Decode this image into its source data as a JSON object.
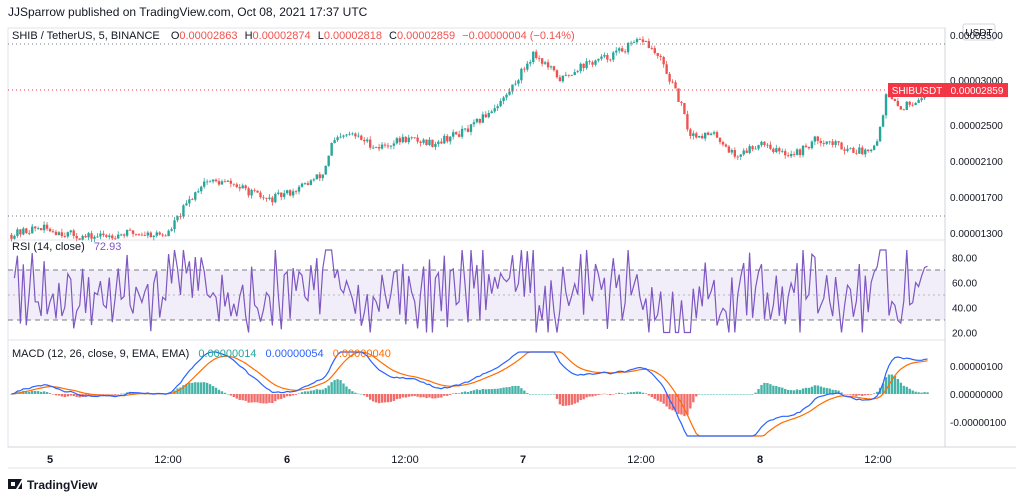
{
  "header": {
    "published": "JJSparrow published on TradingView.com, Oct 08, 2021 17:37 UTC",
    "currency_button": "USDT"
  },
  "symbol": {
    "name": "SHIB / TetherUS, 5, BINANCE",
    "o_label": "O",
    "o_value": "0.00002863",
    "h_label": "H",
    "h_value": "0.00002874",
    "l_label": "L",
    "l_value": "0.00002818",
    "c_label": "C",
    "c_value": "0.00002859",
    "change": "−0.00000004 (−0.14%)",
    "tag_name": "SHIBUSDT",
    "tag_price": "0.00002859"
  },
  "rsi": {
    "title": "RSI (14, close)",
    "value": "72.93"
  },
  "macd": {
    "title": "MACD (12, 26, close, 9, EMA, EMA)",
    "v1": "0.00000014",
    "v2": "0.00000054",
    "v3": "0.00000040"
  },
  "footer": {
    "brand": "TradingView"
  },
  "colors": {
    "up": "#26a69a",
    "down": "#ef5350",
    "rsi": "#7e57c2",
    "macd": "#2962ff",
    "signal": "#ff6d00",
    "tag": "#f23645"
  },
  "chart_data": {
    "type": "candlestick",
    "price_axis_ticks": [
      "0.00003500",
      "0.00003000",
      "0.00002500",
      "0.00002100",
      "0.00001700",
      "0.00001300"
    ],
    "price_axis_values": [
      3.5e-05,
      3e-05,
      2.5e-05,
      2.1e-05,
      1.7e-05,
      1.3e-05
    ],
    "time_labels": [
      "5",
      "12:00",
      "6",
      "12:00",
      "7",
      "12:00",
      "8",
      "12:00"
    ],
    "price_anchors": [
      [
        0,
        1.28e-05
      ],
      [
        0.03,
        1.36e-05
      ],
      [
        0.08,
        1.25e-05
      ],
      [
        0.13,
        1.3e-05
      ],
      [
        0.17,
        1.28e-05
      ],
      [
        0.19,
        1.6e-05
      ],
      [
        0.21,
        1.88e-05
      ],
      [
        0.24,
        1.85e-05
      ],
      [
        0.28,
        1.66e-05
      ],
      [
        0.31,
        1.78e-05
      ],
      [
        0.34,
        1.95e-05
      ],
      [
        0.35,
        2.3e-05
      ],
      [
        0.37,
        2.4e-05
      ],
      [
        0.4,
        2.25e-05
      ],
      [
        0.43,
        2.35e-05
      ],
      [
        0.46,
        2.3e-05
      ],
      [
        0.5,
        2.45e-05
      ],
      [
        0.54,
        2.82e-05
      ],
      [
        0.57,
        3.3e-05
      ],
      [
        0.6,
        3e-05
      ],
      [
        0.62,
        3.15e-05
      ],
      [
        0.65,
        3.25e-05
      ],
      [
        0.69,
        3.45e-05
      ],
      [
        0.71,
        3.2e-05
      ],
      [
        0.73,
        2.75e-05
      ],
      [
        0.74,
        2.4e-05
      ],
      [
        0.77,
        2.38e-05
      ],
      [
        0.79,
        2.15e-05
      ],
      [
        0.82,
        2.32e-05
      ],
      [
        0.84,
        2.18e-05
      ],
      [
        0.86,
        2.2e-05
      ],
      [
        0.88,
        2.35e-05
      ],
      [
        0.91,
        2.25e-05
      ],
      [
        0.93,
        2.2e-05
      ],
      [
        0.945,
        2.32e-05
      ],
      [
        0.955,
        2.83e-05
      ],
      [
        0.97,
        2.68e-05
      ],
      [
        1.0,
        2.859e-05
      ]
    ],
    "rsi_axis_ticks": [
      "80.00",
      "60.00",
      "40.00",
      "20.00"
    ],
    "rsi_axis_values": [
      80,
      60,
      40,
      20
    ],
    "rsi_band": [
      30,
      70
    ],
    "rsi_last": 72.93,
    "macd_axis_ticks": [
      "0.00000100",
      "0.00000000",
      "-0.00000100"
    ],
    "macd_axis_values": [
      1e-06,
      0,
      -1e-06
    ]
  }
}
